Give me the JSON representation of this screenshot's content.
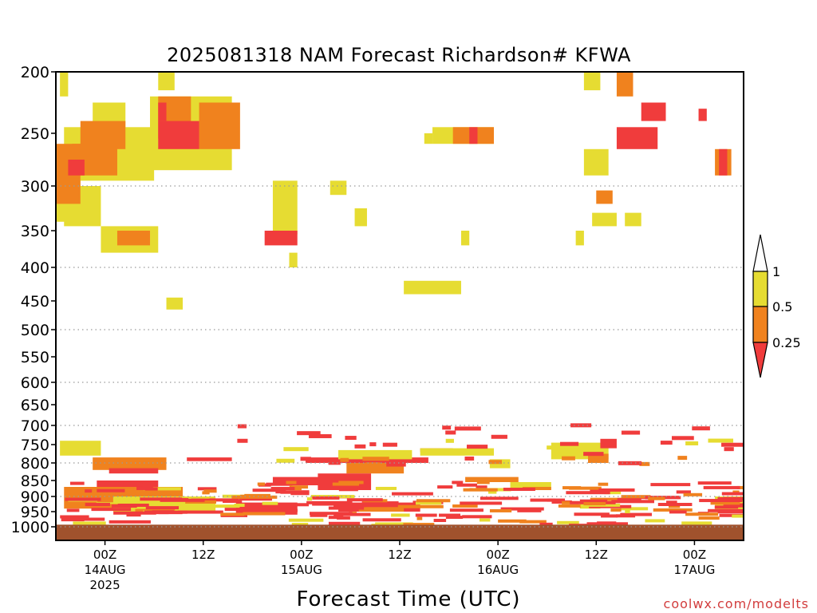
{
  "chart_data": {
    "type": "heatmap",
    "title": "2025081318 NAM Forecast Richardson# KFWA",
    "xlabel": "Forecast Time (UTC)",
    "ylabel": "",
    "credit": "coolwx.com/modelts",
    "y_axis": {
      "scale": "pressure (log-like, inverted)",
      "ylim": [
        1000,
        200
      ],
      "ticks": [
        200,
        250,
        300,
        350,
        400,
        450,
        500,
        550,
        600,
        650,
        700,
        750,
        800,
        850,
        900,
        950,
        1000
      ],
      "dotted_gridlines": [
        300,
        400,
        500,
        600,
        700,
        800,
        900,
        1000
      ]
    },
    "x_axis": {
      "unit": "hours since 2025081318 (18Z 13AUG2025)",
      "xlim": [
        0,
        84
      ],
      "ticks": [
        {
          "hour": 6,
          "label": "00Z",
          "date": "14AUG",
          "year": "2025"
        },
        {
          "hour": 18,
          "label": "12Z",
          "date": "",
          "year": ""
        },
        {
          "hour": 30,
          "label": "00Z",
          "date": "15AUG",
          "year": ""
        },
        {
          "hour": 42,
          "label": "12Z",
          "date": "",
          "year": ""
        },
        {
          "hour": 54,
          "label": "00Z",
          "date": "16AUG",
          "year": ""
        },
        {
          "hour": 66,
          "label": "12Z",
          "date": "",
          "year": ""
        },
        {
          "hour": 78,
          "label": "00Z",
          "date": "17AUG",
          "year": ""
        }
      ]
    },
    "legend": {
      "placement": "right",
      "labels": [
        "1",
        "0.5",
        "0.25"
      ],
      "bins": [
        {
          "range": "0.5-1",
          "color": "#e6dc32"
        },
        {
          "range": "0.25-0.5",
          "color": "#f0821e"
        },
        {
          "range": "<0.25",
          "color": "#f03c3c"
        }
      ]
    },
    "colors": {
      "yellow": "#e6dc32",
      "orange": "#f0821e",
      "red": "#f03c3c",
      "ground": "#a0522d"
    },
    "ground_below_hpa": 993,
    "regions": [
      {
        "c": "y",
        "t0": 0.5,
        "t1": 1.5,
        "p0": 200,
        "p1": 220
      },
      {
        "c": "y",
        "t0": 12.5,
        "t1": 14.5,
        "p0": 200,
        "p1": 215
      },
      {
        "c": "y",
        "t0": 4.5,
        "t1": 8.5,
        "p0": 225,
        "p1": 285
      },
      {
        "c": "y",
        "t0": 1,
        "t1": 12,
        "p0": 245,
        "p1": 295
      },
      {
        "c": "y",
        "t0": 0,
        "t1": 3,
        "p0": 270,
        "p1": 340
      },
      {
        "c": "y",
        "t0": 1,
        "t1": 5.5,
        "p0": 300,
        "p1": 345
      },
      {
        "c": "y",
        "t0": 5.5,
        "t1": 12.5,
        "p0": 345,
        "p1": 380
      },
      {
        "c": "o",
        "t0": 7.5,
        "t1": 11.5,
        "p0": 350,
        "p1": 370
      },
      {
        "c": "o",
        "t0": 0,
        "t1": 3,
        "p0": 260,
        "p1": 320
      },
      {
        "c": "o",
        "t0": 2,
        "t1": 7.5,
        "p0": 260,
        "p1": 290
      },
      {
        "c": "o",
        "t0": 3,
        "t1": 8.5,
        "p0": 240,
        "p1": 265
      },
      {
        "c": "r",
        "t0": 1.5,
        "t1": 3.5,
        "p0": 275,
        "p1": 290
      },
      {
        "c": "y",
        "t0": 11.5,
        "t1": 21.5,
        "p0": 220,
        "p1": 285
      },
      {
        "c": "o",
        "t0": 12.5,
        "t1": 16.5,
        "p0": 220,
        "p1": 255
      },
      {
        "c": "o",
        "t0": 17.5,
        "t1": 22.5,
        "p0": 225,
        "p1": 265
      },
      {
        "c": "r",
        "t0": 12.5,
        "t1": 17.5,
        "p0": 240,
        "p1": 265
      },
      {
        "c": "r",
        "t0": 12.5,
        "t1": 13.5,
        "p0": 225,
        "p1": 240
      },
      {
        "c": "y",
        "t0": 13.5,
        "t1": 15.5,
        "p0": 445,
        "p1": 465
      },
      {
        "c": "y",
        "t0": 26.5,
        "t1": 29.5,
        "p0": 295,
        "p1": 355
      },
      {
        "c": "y",
        "t0": 33.5,
        "t1": 35.5,
        "p0": 295,
        "p1": 310
      },
      {
        "c": "y",
        "t0": 36.5,
        "t1": 38,
        "p0": 325,
        "p1": 345
      },
      {
        "c": "r",
        "t0": 25.5,
        "t1": 29.5,
        "p0": 350,
        "p1": 370
      },
      {
        "c": "y",
        "t0": 28.5,
        "t1": 29.5,
        "p0": 380,
        "p1": 400
      },
      {
        "c": "y",
        "t0": 45,
        "t1": 46,
        "p0": 250,
        "p1": 260
      },
      {
        "c": "y",
        "t0": 46,
        "t1": 53.5,
        "p0": 245,
        "p1": 260
      },
      {
        "c": "o",
        "t0": 48.5,
        "t1": 53.5,
        "p0": 245,
        "p1": 260
      },
      {
        "c": "r",
        "t0": 50.5,
        "t1": 51.5,
        "p0": 245,
        "p1": 260
      },
      {
        "c": "y",
        "t0": 42.5,
        "t1": 49.5,
        "p0": 420,
        "p1": 440
      },
      {
        "c": "y",
        "t0": 49.5,
        "t1": 50.5,
        "p0": 350,
        "p1": 370
      },
      {
        "c": "y",
        "t0": 63.5,
        "t1": 64.5,
        "p0": 350,
        "p1": 370
      },
      {
        "c": "y",
        "t0": 64.5,
        "t1": 66.5,
        "p0": 200,
        "p1": 215
      },
      {
        "c": "o",
        "t0": 68.5,
        "t1": 70.5,
        "p0": 200,
        "p1": 220
      },
      {
        "c": "r",
        "t0": 71.5,
        "t1": 74.5,
        "p0": 225,
        "p1": 240
      },
      {
        "c": "r",
        "t0": 68.5,
        "t1": 73.5,
        "p0": 245,
        "p1": 265
      },
      {
        "c": "r",
        "t0": 78.5,
        "t1": 79.5,
        "p0": 230,
        "p1": 240
      },
      {
        "c": "o",
        "t0": 80.5,
        "t1": 82.5,
        "p0": 265,
        "p1": 290
      },
      {
        "c": "r",
        "t0": 81,
        "t1": 82,
        "p0": 265,
        "p1": 290
      },
      {
        "c": "o",
        "t0": 66,
        "t1": 68,
        "p0": 305,
        "p1": 320
      },
      {
        "c": "y",
        "t0": 65.5,
        "t1": 68.5,
        "p0": 330,
        "p1": 345
      },
      {
        "c": "y",
        "t0": 69.5,
        "t1": 71.5,
        "p0": 330,
        "p1": 345
      },
      {
        "c": "y",
        "t0": 64.5,
        "t1": 67.5,
        "p0": 265,
        "p1": 290
      }
    ],
    "blocks": [
      {
        "c": "y",
        "t0": 0.5,
        "t1": 5.5,
        "p0": 740,
        "p1": 780
      },
      {
        "c": "o",
        "t0": 4.5,
        "t1": 13.5,
        "p0": 785,
        "p1": 820
      },
      {
        "c": "r",
        "t0": 6.5,
        "t1": 12.5,
        "p0": 815,
        "p1": 830
      },
      {
        "c": "r",
        "t0": 16,
        "t1": 21.5,
        "p0": 785,
        "p1": 795
      },
      {
        "c": "r",
        "t0": 5,
        "t1": 12.5,
        "p0": 850,
        "p1": 900
      },
      {
        "c": "o",
        "t0": 1,
        "t1": 15.5,
        "p0": 870,
        "p1": 940
      },
      {
        "c": "y",
        "t0": 7,
        "t1": 19.5,
        "p0": 900,
        "p1": 950
      },
      {
        "c": "r",
        "t0": 22,
        "t1": 29.5,
        "p0": 920,
        "p1": 960
      },
      {
        "c": "r",
        "t0": 26.5,
        "t1": 32.5,
        "p0": 840,
        "p1": 865
      },
      {
        "c": "r",
        "t0": 30.5,
        "t1": 45.5,
        "p0": 785,
        "p1": 800
      },
      {
        "c": "o",
        "t0": 35.5,
        "t1": 42.5,
        "p0": 800,
        "p1": 830
      },
      {
        "c": "y",
        "t0": 34.5,
        "t1": 43.5,
        "p0": 765,
        "p1": 790
      },
      {
        "c": "r",
        "t0": 32,
        "t1": 38.5,
        "p0": 830,
        "p1": 880
      },
      {
        "c": "r",
        "t0": 34.5,
        "t1": 44.5,
        "p0": 920,
        "p1": 950
      },
      {
        "c": "o",
        "t0": 37,
        "t1": 42.5,
        "p0": 935,
        "p1": 950
      },
      {
        "c": "r",
        "t0": 44.5,
        "t1": 48.5,
        "p0": 760,
        "p1": 770
      },
      {
        "c": "y",
        "t0": 44.5,
        "t1": 53.5,
        "p0": 760,
        "p1": 780
      },
      {
        "c": "y",
        "t0": 53,
        "t1": 55.5,
        "p0": 790,
        "p1": 815
      },
      {
        "c": "o",
        "t0": 50,
        "t1": 56.5,
        "p0": 840,
        "p1": 855
      },
      {
        "c": "y",
        "t0": 55.5,
        "t1": 60.5,
        "p0": 855,
        "p1": 880
      },
      {
        "c": "o",
        "t0": 57,
        "t1": 60.5,
        "p0": 870,
        "p1": 880
      },
      {
        "c": "y",
        "t0": 60.5,
        "t1": 67.5,
        "p0": 745,
        "p1": 790
      },
      {
        "c": "o",
        "t0": 65,
        "t1": 67.5,
        "p0": 775,
        "p1": 800
      },
      {
        "c": "r",
        "t0": 66.5,
        "t1": 68.5,
        "p0": 735,
        "p1": 760
      },
      {
        "c": "y",
        "t0": 64,
        "t1": 66.5,
        "p0": 920,
        "p1": 940
      },
      {
        "c": "y",
        "t0": 80.5,
        "t1": 84,
        "p0": 900,
        "p1": 945
      }
    ]
  }
}
